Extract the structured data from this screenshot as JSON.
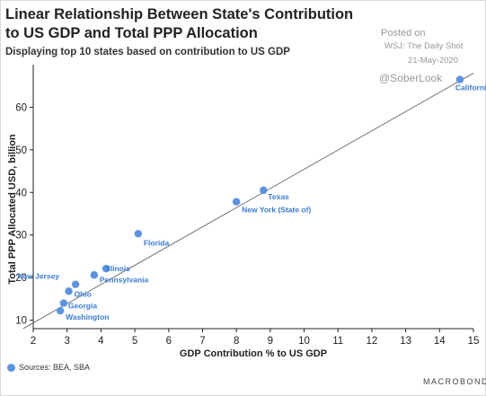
{
  "header": {
    "title": "Linear Relationship Between State's Contribution to US GDP and Total PPP Allocation",
    "subtitle": "Displaying top 10 states based on contribution to US GDP",
    "posted_on": "Posted on",
    "source_line": "WSJ: The Daily Shot",
    "date": "21-May-2020",
    "handle": "@SoberLook"
  },
  "footer": {
    "sources": "Sources: BEA, SBA",
    "brand": "MACROBOND"
  },
  "colors": {
    "points": "#5b93e3",
    "labels": "#3a7bd5",
    "trend": "#555555"
  },
  "chart_data": {
    "type": "scatter",
    "xlabel": "GDP Contribution % to US GDP",
    "ylabel": "Total PPP Allocated USD, billion",
    "xlim": [
      2,
      15
    ],
    "ylim": [
      8,
      70
    ],
    "x_ticks": [
      2,
      3,
      4,
      5,
      6,
      7,
      8,
      9,
      10,
      11,
      12,
      13,
      14,
      15
    ],
    "y_ticks": [
      10,
      20,
      30,
      40,
      50,
      60
    ],
    "points": [
      {
        "label": "California",
        "x": 14.6,
        "y": 66.5
      },
      {
        "label": "Texas",
        "x": 8.8,
        "y": 40.5
      },
      {
        "label": "New York (State of)",
        "x": 8.0,
        "y": 37.8
      },
      {
        "label": "Florida",
        "x": 5.1,
        "y": 30.3
      },
      {
        "label": "Illinois",
        "x": 4.15,
        "y": 22.1
      },
      {
        "label": "Pennsylvania",
        "x": 3.8,
        "y": 20.6
      },
      {
        "label": "New Jersey",
        "x": 3.25,
        "y": 18.4
      },
      {
        "label": "Ohio",
        "x": 3.05,
        "y": 16.8
      },
      {
        "label": "Georgia",
        "x": 2.9,
        "y": 14.0
      },
      {
        "label": "Washington",
        "x": 2.8,
        "y": 12.2
      }
    ],
    "trendline": {
      "x": [
        1.7,
        15.0
      ],
      "y": [
        8.0,
        68.0
      ]
    },
    "grid": false,
    "legend": "bottom-left"
  }
}
